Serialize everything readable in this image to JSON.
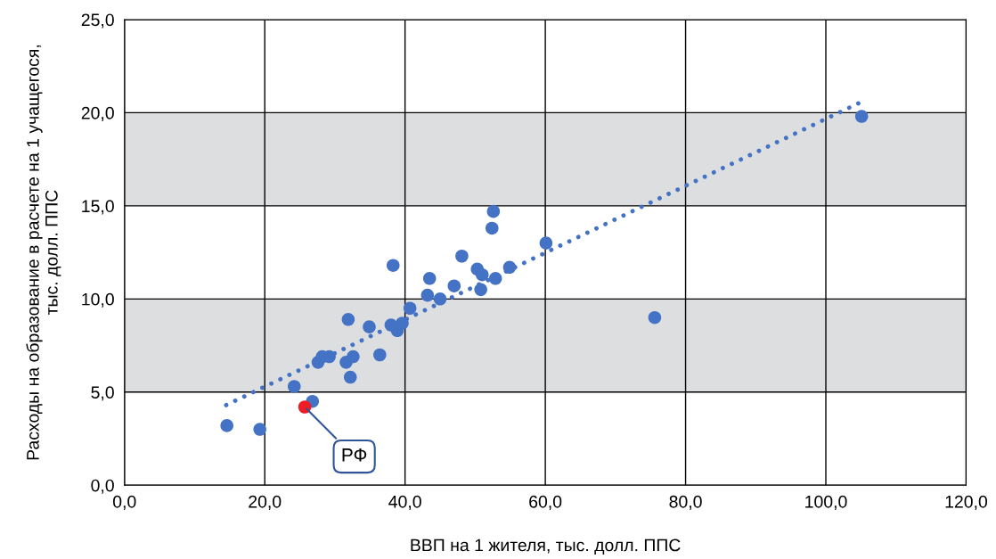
{
  "chart_data": {
    "type": "scatter",
    "xlabel": "ВВП на 1 жителя, тыс. долл. ППС",
    "ylabel": "Расходы на образование в расчете на 1 учащегося,\nтыс. долл. ППС",
    "series": [
      {
        "color": "#4472c4",
        "x": [
          14.6,
          19.3,
          24.2,
          26.8,
          27.6,
          28.2,
          29.2,
          31.6,
          32.6,
          32.2,
          31.9,
          34.9,
          36.4,
          38.3,
          38.0,
          38.9,
          39.6,
          40.7,
          43.2,
          43.5,
          45.0,
          47.0,
          48.1,
          50.3,
          51.0,
          50.8,
          52.9,
          52.4,
          52.6,
          54.9,
          60.1,
          75.6,
          105.1
        ],
        "values": [
          3.2,
          3.0,
          5.3,
          4.5,
          6.6,
          6.9,
          6.9,
          6.6,
          6.9,
          5.8,
          8.9,
          8.5,
          7.0,
          11.8,
          8.6,
          8.3,
          8.7,
          9.5,
          10.2,
          11.1,
          10.0,
          10.7,
          12.3,
          11.6,
          11.3,
          10.5,
          11.1,
          13.8,
          14.7,
          11.7,
          13.0,
          9.0,
          19.8
        ]
      },
      {
        "color": "#ee1c25",
        "x": [
          25.7
        ],
        "values": [
          4.2
        ]
      },
      {
        "type": "line",
        "color": "#4472c4",
        "line_style": "dotted",
        "marker": "none",
        "x": [
          14.5,
          105.2
        ],
        "values": [
          4.3,
          20.6
        ]
      }
    ],
    "annotations": [
      {
        "text": "РФ",
        "x": 25.7,
        "y": 4.2
      }
    ],
    "xlim": [
      0,
      120
    ],
    "ylim": [
      0,
      25
    ],
    "xticks": [
      {
        "value": 0,
        "label": "0,0"
      },
      {
        "value": 20,
        "label": "20,0"
      },
      {
        "value": 40,
        "label": "40,0"
      },
      {
        "value": 60,
        "label": "60,0"
      },
      {
        "value": 80,
        "label": "80,0"
      },
      {
        "value": 100,
        "label": "100,0"
      },
      {
        "value": 120,
        "label": "120,0"
      }
    ],
    "yticks": [
      {
        "value": 0,
        "label": "0,0"
      },
      {
        "value": 5,
        "label": "5,0"
      },
      {
        "value": 10,
        "label": "10,0"
      },
      {
        "value": 15,
        "label": "15,0"
      },
      {
        "value": 20,
        "label": "20,0"
      },
      {
        "value": 25,
        "label": "25,0"
      }
    ],
    "bands": [
      {
        "axis": "y",
        "from": 5,
        "to": 10,
        "color": "#dddee0"
      },
      {
        "axis": "y",
        "from": 15,
        "to": 20,
        "color": "#dddee0"
      }
    ],
    "grid": true,
    "marker": "circle",
    "legend": false
  }
}
